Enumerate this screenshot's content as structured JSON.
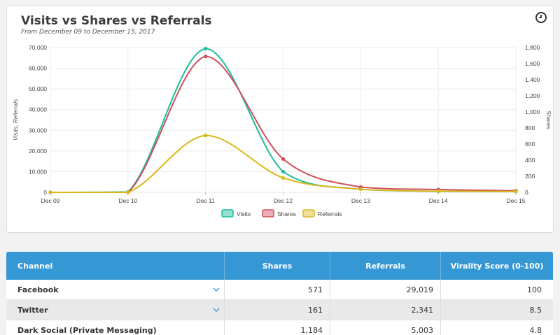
{
  "chart_card": {
    "title": "Visits vs Shares vs Referrals",
    "subtitle": "From December 09 to December 15, 2017",
    "clock_icon": "clock-icon"
  },
  "chart_data": {
    "type": "line",
    "categories": [
      "Dec 09",
      "Dec 10",
      "Dec 11",
      "Dec 12",
      "Dec 13",
      "Dec 14",
      "Dec 15"
    ],
    "ylabel_left": "Visits, Referrals",
    "ylabel_right": "Shares",
    "ylim_left": [
      0,
      70000
    ],
    "ylim_right": [
      0,
      1800
    ],
    "yticks_left": [
      "0",
      "10,000",
      "20,000",
      "30,000",
      "40,000",
      "50,000",
      "60,000",
      "70,000"
    ],
    "yticks_right": [
      "0",
      "200",
      "400",
      "600",
      "800",
      "1,000",
      "1,200",
      "1,400",
      "1,600",
      "1,800"
    ],
    "grid": true,
    "legend_position": "bottom",
    "series": [
      {
        "name": "Visits",
        "axis": "left",
        "color": "#1bbc9b",
        "values": [
          0,
          200,
          69500,
          10000,
          1500,
          500,
          400
        ]
      },
      {
        "name": "Shares",
        "axis": "right",
        "color": "#d0505a",
        "values": [
          0,
          0,
          1690,
          415,
          65,
          35,
          20
        ]
      },
      {
        "name": "Referrals",
        "axis": "left",
        "color": "#dcb81b",
        "values": [
          0,
          0,
          27500,
          7000,
          1500,
          600,
          400
        ]
      }
    ]
  },
  "table": {
    "headers": [
      "Channel",
      "Shares",
      "Referrals",
      "Virality Score (0-100)"
    ],
    "rows": [
      {
        "channel": "Facebook",
        "shares": "571",
        "referrals": "29,019",
        "score": "100",
        "expand": true
      },
      {
        "channel": "Twitter",
        "shares": "161",
        "referrals": "2,341",
        "score": "8.5",
        "expand": true
      },
      {
        "channel": "Dark Social (Private Messaging)",
        "shares": "1,184",
        "referrals": "5,003",
        "score": "4.8",
        "expand": false
      }
    ]
  }
}
